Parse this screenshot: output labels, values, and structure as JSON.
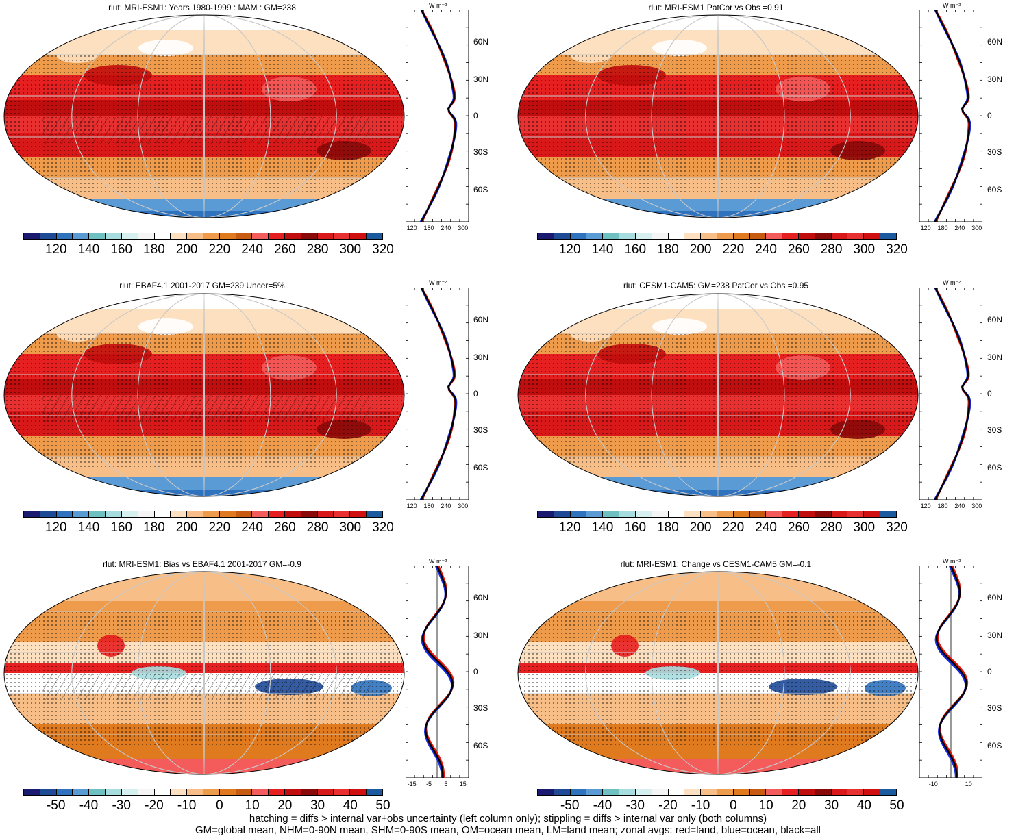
{
  "panels": [
    {
      "id": "p1",
      "title": "rlut: MRI-ESM1: Years 1980-1999 : MAM : GM=238",
      "scale": "abs",
      "hatch": true
    },
    {
      "id": "p2",
      "title": "rlut: MRI-ESM1 PatCor vs Obs =0.91",
      "scale": "abs",
      "hatch": false
    },
    {
      "id": "p3",
      "title": "rlut: EBAF4.1 2001-2017 GM=239 Uncer=5%",
      "scale": "abs",
      "hatch": true
    },
    {
      "id": "p4",
      "title": "rlut: CESM1-CAM5: GM=238 PatCor vs Obs =0.95",
      "scale": "abs",
      "hatch": false
    },
    {
      "id": "p5",
      "title": "rlut: MRI-ESM1: Bias vs EBAF4.1 2001-2017 GM=-0.9",
      "scale": "diff",
      "hatch": true
    },
    {
      "id": "p6",
      "title": "rlut: MRI-ESM1: Change vs CESM1-CAM5 GM=-0.1",
      "scale": "diff",
      "hatch": false
    }
  ],
  "colorbar_abs": {
    "colors": [
      "#1a1a70",
      "#1f4a96",
      "#2f72bd",
      "#5b9bd5",
      "#6fc0c0",
      "#a8dde0",
      "#d6f0f0",
      "#f5f5f5",
      "#ffffff",
      "#fde0bf",
      "#f7bf87",
      "#ee9b4c",
      "#e07a1f",
      "#c75b12",
      "#f45b5b",
      "#e62020",
      "#c00d0d",
      "#8a0a0a",
      "#d91919",
      "#e83030",
      "#d01010",
      "#1c5aa0"
    ],
    "labels": [
      "120",
      "140",
      "160",
      "180",
      "200",
      "220",
      "240",
      "260",
      "280",
      "300",
      "320"
    ]
  },
  "colorbar_diff": {
    "colors": [
      "#1a1a70",
      "#1f4a96",
      "#2f72bd",
      "#5b9bd5",
      "#6fc0c0",
      "#a8dde0",
      "#d6f0f0",
      "#f5f5f5",
      "#ffffff",
      "#fde0bf",
      "#f7bf87",
      "#ee9b4c",
      "#e07a1f",
      "#c75b12",
      "#f45b5b",
      "#e62020",
      "#c00d0d",
      "#8a0a0a",
      "#d91919",
      "#e83030",
      "#d01010",
      "#1c5aa0"
    ],
    "labels": [
      "-50",
      "-40",
      "-30",
      "-20",
      "-10",
      "0",
      "10",
      "20",
      "30",
      "40",
      "50"
    ]
  },
  "zonal_units": "W m⁻²",
  "lat_labels": [
    "60N",
    "30N",
    "0",
    "30S",
    "60S"
  ],
  "zonal_xticks": {
    "abs": [
      "120",
      "180",
      "240",
      "300"
    ],
    "diff_left": [
      "-15",
      "-5",
      "5",
      "15"
    ],
    "diff_right": [
      "-10",
      "10"
    ]
  },
  "legend_colors": {
    "land": "#e8150c",
    "ocean": "#1a2ce0",
    "all": "#000000"
  },
  "footer": [
    "hatching = diffs > internal var+obs uncertainty (left column only); stippling = diffs > internal var only (both columns)",
    "GM=global mean, NHM=0-90N mean, SHM=0-90S mean, OM=ocean mean, LM=land mean; zonal avgs: red=land, blue=ocean, black=all"
  ]
}
